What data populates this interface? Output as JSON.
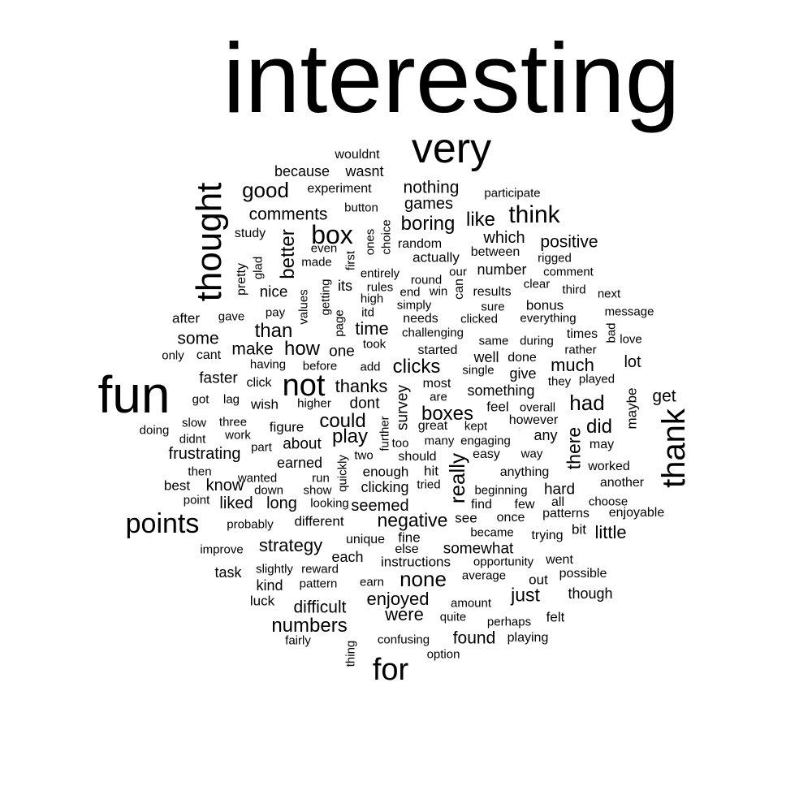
{
  "words": [
    "interesting",
    "very",
    "fun",
    "thought",
    "thank",
    "points",
    "for",
    "not",
    "box",
    "think",
    "good",
    "comments",
    "boring",
    "like",
    "positive",
    "better",
    "nothing",
    "games",
    "which",
    "could",
    "play",
    "boxes",
    "clicks",
    "thanks",
    "had",
    "did",
    "there",
    "really",
    "none",
    "numbers",
    "negative",
    "just",
    "strategy",
    "little",
    "enjoyed",
    "were",
    "found",
    "difficult",
    "seemed",
    "time",
    "than",
    "how",
    "make",
    "some",
    "much",
    "lot",
    "get",
    "maybe",
    "survey",
    "dont",
    "one",
    "know",
    "liked",
    "long",
    "about",
    "frustrating",
    "faster",
    "nice",
    "its",
    "number",
    "hard",
    "somewhat",
    "wouldnt",
    "because",
    "wasnt",
    "experiment",
    "button",
    "participate",
    "study",
    "random",
    "actually",
    "between",
    "ones",
    "choice",
    "first",
    "glad",
    "pretty",
    "made",
    "even",
    "entirely",
    "round",
    "our",
    "rigged",
    "comment",
    "clear",
    "third",
    "next",
    "results",
    "sure",
    "bonus",
    "everything",
    "message",
    "getting",
    "values",
    "page",
    "itd",
    "rules",
    "high",
    "end",
    "win",
    "simply",
    "needs",
    "clicked",
    "challenging",
    "same",
    "during",
    "times",
    "bad",
    "love",
    "rather",
    "took",
    "started",
    "well",
    "done",
    "give",
    "they",
    "played",
    "single",
    "something",
    "most",
    "are",
    "feel",
    "overall",
    "however",
    "any",
    "kept",
    "great",
    "many",
    "engaging",
    "may",
    "easy",
    "way",
    "should",
    "too",
    "two",
    "further",
    "quickly",
    "earned",
    "hit",
    "enough",
    "worked",
    "anything",
    "clicking",
    "tried",
    "beginning",
    "another",
    "find",
    "few",
    "all",
    "choose",
    "patterns",
    "enjoyable",
    "see",
    "once",
    "became",
    "trying",
    "bit",
    "fine",
    "unique",
    "else",
    "each",
    "instructions",
    "opportunity",
    "went",
    "average",
    "out",
    "possible",
    "earn",
    "amount",
    "though",
    "quite",
    "perhaps",
    "felt",
    "playing",
    "confusing",
    "option",
    "thing",
    "after",
    "gave",
    "pay",
    "only",
    "cant",
    "having",
    "before",
    "add",
    "click",
    "wish",
    "higher",
    "got",
    "lag",
    "slow",
    "three",
    "figure",
    "doing",
    "didnt",
    "work",
    "part",
    "then",
    "wanted",
    "run",
    "best",
    "down",
    "show",
    "point",
    "probably",
    "different",
    "improve",
    "task",
    "slightly",
    "reward",
    "kind",
    "pattern",
    "luck",
    "fairly",
    "looking",
    "can",
    "also"
  ]
}
